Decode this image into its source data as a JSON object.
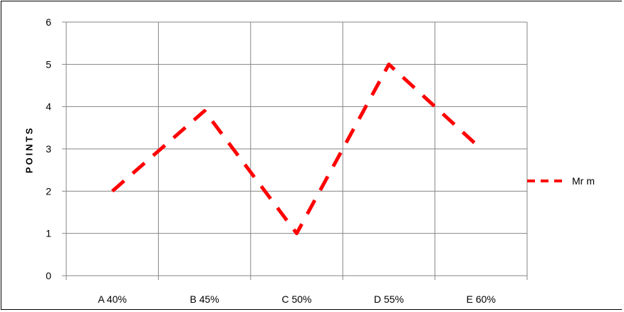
{
  "chart_data": {
    "type": "line",
    "title": "",
    "xlabel": "",
    "ylabel": "POINTS",
    "categories": [
      "A 40%",
      "B 45%",
      "C 50%",
      "D 55%",
      "E 60%"
    ],
    "series": [
      {
        "name": "Mr m",
        "values": [
          2,
          3.9,
          1,
          5,
          3
        ],
        "color": "#ff0000",
        "line_style": "dashed"
      }
    ],
    "ylim": [
      0,
      6
    ],
    "yticks": [
      "0",
      "1",
      "2",
      "3",
      "4",
      "5",
      "6"
    ],
    "grid": true,
    "legend_position": "right"
  }
}
